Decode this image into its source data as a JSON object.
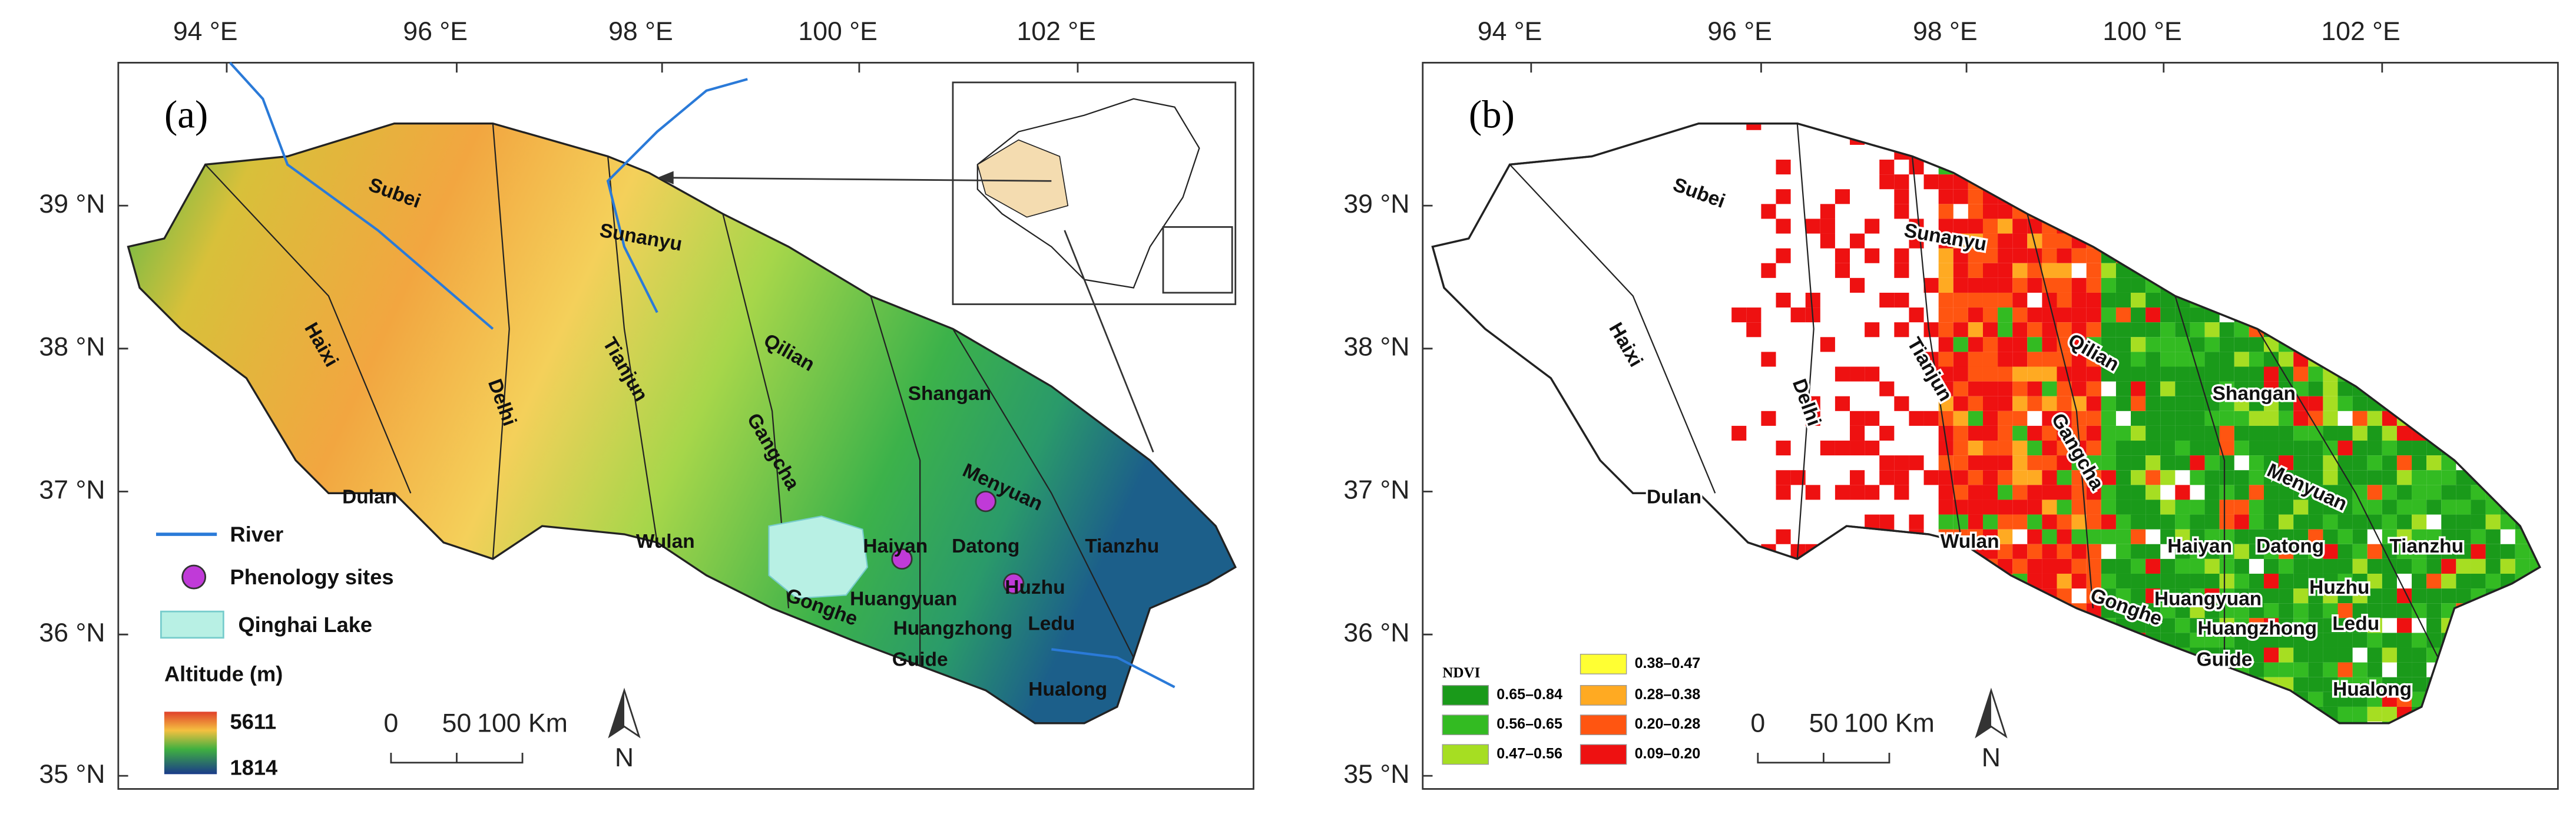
{
  "panels": [
    {
      "label": "(a)",
      "lon_labels": [
        "94 °E",
        "96 °E",
        "98 °E",
        "100 °E",
        "102 °E"
      ],
      "lat_labels": [
        "39 °N",
        "38 °N",
        "37 °N",
        "36 °N",
        "35 °N"
      ],
      "regions": [
        "Subei",
        "Sunanyu",
        "Haixi",
        "Delhi",
        "Tianjun",
        "Qilian",
        "Shangan",
        "Gangcha",
        "Menyuan",
        "Dulan",
        "Wulan",
        "Haiyan",
        "Datong",
        "Tianzhu",
        "Huangyuan",
        "Huzhu",
        "Gonghe",
        "Huangzhong",
        "Ledu",
        "Guide",
        "Hualong"
      ],
      "legend": {
        "river": "River",
        "sites": "Phenology sites",
        "lake": "Qinghai Lake",
        "altitude_title": "Altitude (m)",
        "altitude_max": "5611",
        "altitude_min": "1814"
      },
      "scale": [
        "0",
        "50",
        "100 Km"
      ],
      "north": "N"
    },
    {
      "label": "(b)",
      "lon_labels": [
        "94 °E",
        "96 °E",
        "98 °E",
        "100 °E",
        "102 °E"
      ],
      "lat_labels": [
        "39 °N",
        "38 °N",
        "37 °N",
        "36 °N",
        "35 °N"
      ],
      "regions": [
        "Subei",
        "Sunanyu",
        "Haixi",
        "Delhi",
        "Tianjun",
        "Qilian",
        "Shangan",
        "Gangcha",
        "Menyuan",
        "Dulan",
        "Wulan",
        "Haiyan",
        "Datong",
        "Tianzhu",
        "Huangyuan",
        "Huzhu",
        "Gonghe",
        "Huangzhong",
        "Ledu",
        "Guide",
        "Hualong"
      ],
      "legend": {
        "title": "NDVI",
        "classes": [
          {
            "label": "0.65–0.84",
            "color": "#1a9a1a"
          },
          {
            "label": "0.56–0.65",
            "color": "#33bb22"
          },
          {
            "label": "0.47–0.56",
            "color": "#a6de22"
          },
          {
            "label": "0.38–0.47",
            "color": "#ffff33"
          },
          {
            "label": "0.28–0.38",
            "color": "#ffaa22"
          },
          {
            "label": "0.20–0.28",
            "color": "#ff5511"
          },
          {
            "label": "0.09–0.20",
            "color": "#ee1111"
          }
        ]
      },
      "scale": [
        "0",
        "50",
        "100 Km"
      ],
      "north": "N"
    }
  ]
}
